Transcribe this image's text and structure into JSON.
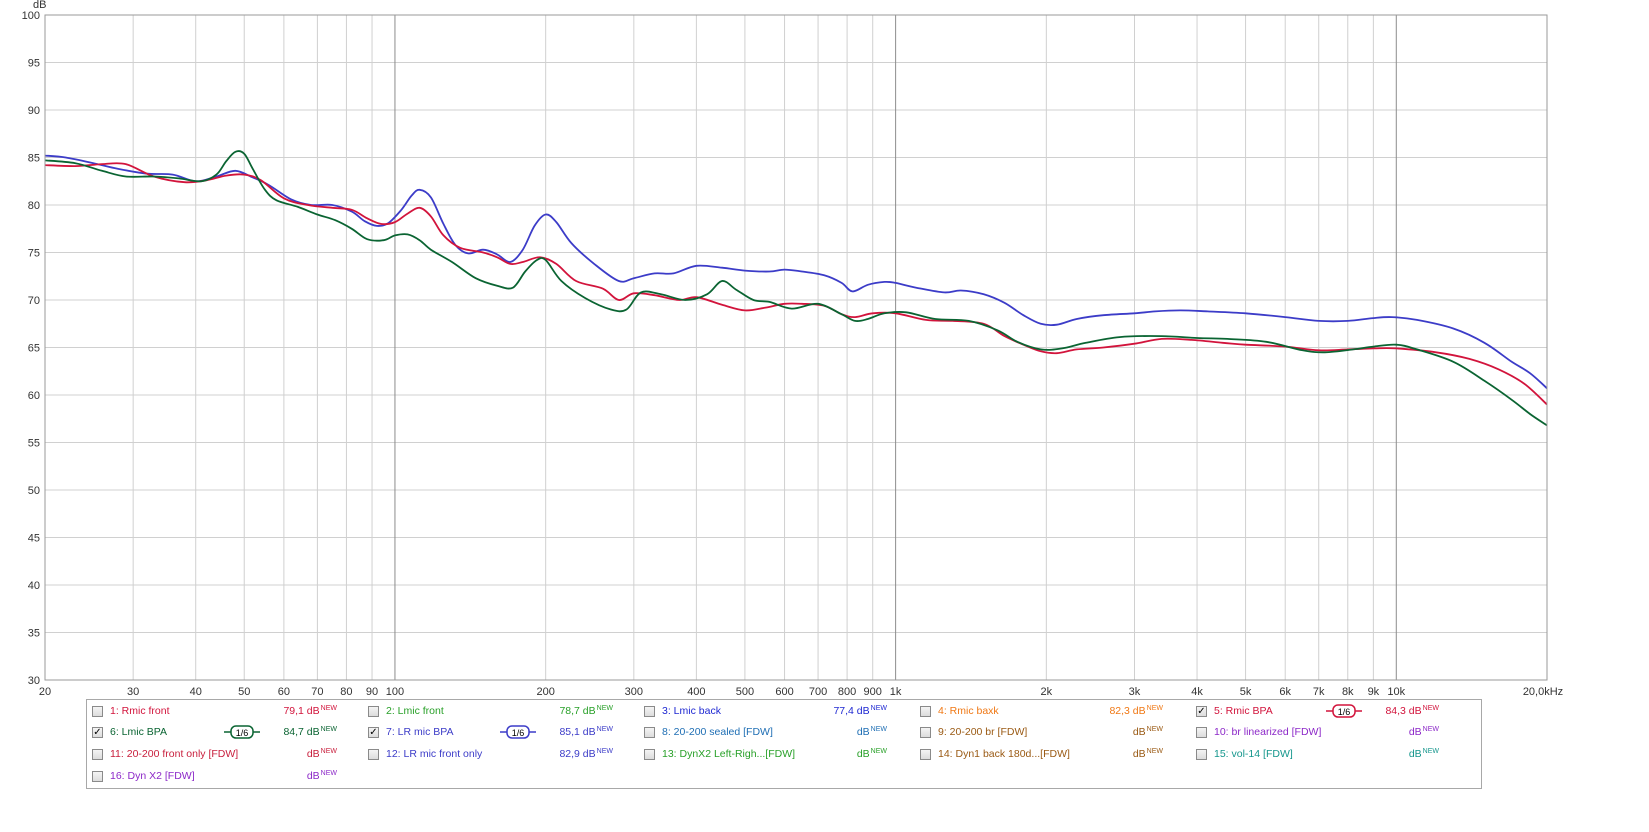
{
  "chart_data": {
    "type": "line",
    "title": "",
    "xlabel": "",
    "ylabel": "dB",
    "x_scale": "log",
    "xlim": [
      20,
      20000
    ],
    "ylim": [
      30,
      100
    ],
    "y_ticks": [
      "100",
      "95",
      "90",
      "85",
      "80",
      "75",
      "70",
      "65",
      "60",
      "55",
      "50",
      "45",
      "40",
      "35",
      "30"
    ],
    "x_ticks": [
      {
        "value": 20,
        "label": "20"
      },
      {
        "value": 30,
        "label": "30"
      },
      {
        "value": 40,
        "label": "40"
      },
      {
        "value": 50,
        "label": "50"
      },
      {
        "value": 60,
        "label": "60"
      },
      {
        "value": 70,
        "label": "70"
      },
      {
        "value": 80,
        "label": "80"
      },
      {
        "value": 90,
        "label": "90"
      },
      {
        "value": 100,
        "label": "100"
      },
      {
        "value": 200,
        "label": "200"
      },
      {
        "value": 300,
        "label": "300"
      },
      {
        "value": 400,
        "label": "400"
      },
      {
        "value": 500,
        "label": "500"
      },
      {
        "value": 600,
        "label": "600"
      },
      {
        "value": 700,
        "label": "700"
      },
      {
        "value": 800,
        "label": "800"
      },
      {
        "value": 900,
        "label": "900"
      },
      {
        "value": 1000,
        "label": "1k"
      },
      {
        "value": 2000,
        "label": "2k"
      },
      {
        "value": 3000,
        "label": "3k"
      },
      {
        "value": 4000,
        "label": "4k"
      },
      {
        "value": 5000,
        "label": "5k"
      },
      {
        "value": 6000,
        "label": "6k"
      },
      {
        "value": 7000,
        "label": "7k"
      },
      {
        "value": 8000,
        "label": "8k"
      },
      {
        "value": 9000,
        "label": "9k"
      },
      {
        "value": 10000,
        "label": "10k"
      },
      {
        "value": 20000,
        "label": "20,0kHz"
      }
    ],
    "grid": true,
    "series": [
      {
        "name": "7: LR mic BPA",
        "color": "#3c3cc8",
        "points": [
          [
            20,
            85.2
          ],
          [
            22,
            85.0
          ],
          [
            25,
            84.4
          ],
          [
            28,
            83.8
          ],
          [
            32,
            83.3
          ],
          [
            36,
            83.2
          ],
          [
            40,
            82.5
          ],
          [
            44,
            83.0
          ],
          [
            48,
            83.6
          ],
          [
            52,
            82.9
          ],
          [
            56,
            82.1
          ],
          [
            62,
            80.6
          ],
          [
            68,
            80.0
          ],
          [
            75,
            80.0
          ],
          [
            82,
            79.3
          ],
          [
            87,
            78.3
          ],
          [
            92,
            77.8
          ],
          [
            97,
            78.1
          ],
          [
            103,
            79.5
          ],
          [
            108,
            81.0
          ],
          [
            112,
            81.6
          ],
          [
            118,
            80.8
          ],
          [
            125,
            78.0
          ],
          [
            132,
            75.8
          ],
          [
            140,
            74.9
          ],
          [
            150,
            75.3
          ],
          [
            160,
            74.8
          ],
          [
            170,
            74.0
          ],
          [
            180,
            75.3
          ],
          [
            190,
            77.8
          ],
          [
            200,
            79.0
          ],
          [
            210,
            78.2
          ],
          [
            225,
            76.0
          ],
          [
            250,
            73.8
          ],
          [
            280,
            72.0
          ],
          [
            300,
            72.3
          ],
          [
            330,
            72.8
          ],
          [
            360,
            72.8
          ],
          [
            400,
            73.6
          ],
          [
            450,
            73.4
          ],
          [
            500,
            73.1
          ],
          [
            560,
            73.0
          ],
          [
            600,
            73.2
          ],
          [
            650,
            73.0
          ],
          [
            720,
            72.6
          ],
          [
            780,
            71.8
          ],
          [
            820,
            70.9
          ],
          [
            880,
            71.6
          ],
          [
            950,
            71.9
          ],
          [
            1000,
            71.8
          ],
          [
            1100,
            71.3
          ],
          [
            1250,
            70.8
          ],
          [
            1350,
            71.0
          ],
          [
            1500,
            70.6
          ],
          [
            1650,
            69.7
          ],
          [
            1800,
            68.4
          ],
          [
            1950,
            67.5
          ],
          [
            2100,
            67.4
          ],
          [
            2300,
            68.0
          ],
          [
            2600,
            68.4
          ],
          [
            3000,
            68.6
          ],
          [
            3300,
            68.8
          ],
          [
            3700,
            68.9
          ],
          [
            4200,
            68.8
          ],
          [
            5000,
            68.6
          ],
          [
            6000,
            68.2
          ],
          [
            7000,
            67.8
          ],
          [
            8000,
            67.8
          ],
          [
            9000,
            68.1
          ],
          [
            9800,
            68.2
          ],
          [
            11000,
            67.9
          ],
          [
            13000,
            67.0
          ],
          [
            15000,
            65.5
          ],
          [
            17000,
            63.5
          ],
          [
            18500,
            62.3
          ],
          [
            20000,
            60.7
          ]
        ]
      },
      {
        "name": "5: Rmic BPA",
        "color": "#d2143c",
        "points": [
          [
            20,
            84.2
          ],
          [
            23,
            84.1
          ],
          [
            26,
            84.3
          ],
          [
            29,
            84.3
          ],
          [
            33,
            83.0
          ],
          [
            38,
            82.4
          ],
          [
            42,
            82.6
          ],
          [
            46,
            83.1
          ],
          [
            50,
            83.2
          ],
          [
            54,
            82.6
          ],
          [
            60,
            80.7
          ],
          [
            67,
            80.0
          ],
          [
            75,
            79.7
          ],
          [
            82,
            79.5
          ],
          [
            88,
            78.6
          ],
          [
            94,
            78.0
          ],
          [
            100,
            78.2
          ],
          [
            106,
            79.1
          ],
          [
            112,
            79.7
          ],
          [
            118,
            78.8
          ],
          [
            125,
            76.8
          ],
          [
            135,
            75.5
          ],
          [
            150,
            75.0
          ],
          [
            160,
            74.5
          ],
          [
            170,
            73.8
          ],
          [
            180,
            74.0
          ],
          [
            195,
            74.5
          ],
          [
            210,
            73.8
          ],
          [
            230,
            72.0
          ],
          [
            260,
            71.2
          ],
          [
            280,
            70.0
          ],
          [
            300,
            70.7
          ],
          [
            330,
            70.5
          ],
          [
            370,
            70.0
          ],
          [
            400,
            70.3
          ],
          [
            450,
            69.5
          ],
          [
            500,
            68.9
          ],
          [
            550,
            69.2
          ],
          [
            600,
            69.6
          ],
          [
            650,
            69.6
          ],
          [
            720,
            69.4
          ],
          [
            780,
            68.5
          ],
          [
            830,
            68.2
          ],
          [
            900,
            68.6
          ],
          [
            1000,
            68.6
          ],
          [
            1150,
            67.9
          ],
          [
            1300,
            67.8
          ],
          [
            1500,
            67.5
          ],
          [
            1650,
            66.2
          ],
          [
            1800,
            65.3
          ],
          [
            1950,
            64.6
          ],
          [
            2100,
            64.4
          ],
          [
            2300,
            64.8
          ],
          [
            2600,
            65.0
          ],
          [
            3000,
            65.4
          ],
          [
            3400,
            65.9
          ],
          [
            3900,
            65.8
          ],
          [
            4500,
            65.5
          ],
          [
            5000,
            65.3
          ],
          [
            6000,
            65.1
          ],
          [
            7000,
            64.7
          ],
          [
            8000,
            64.8
          ],
          [
            9000,
            64.9
          ],
          [
            10000,
            64.9
          ],
          [
            12000,
            64.5
          ],
          [
            14000,
            63.8
          ],
          [
            16000,
            62.7
          ],
          [
            18000,
            61.2
          ],
          [
            20000,
            59.0
          ]
        ]
      },
      {
        "name": "6: Lmic BPA",
        "color": "#0a6432",
        "points": [
          [
            20,
            84.7
          ],
          [
            23,
            84.4
          ],
          [
            26,
            83.6
          ],
          [
            29,
            83.0
          ],
          [
            33,
            83.0
          ],
          [
            37,
            82.8
          ],
          [
            41,
            82.5
          ],
          [
            44,
            83.2
          ],
          [
            46,
            84.6
          ],
          [
            48,
            85.6
          ],
          [
            50,
            85.4
          ],
          [
            52,
            83.8
          ],
          [
            55,
            81.6
          ],
          [
            58,
            80.5
          ],
          [
            64,
            79.8
          ],
          [
            70,
            79.0
          ],
          [
            76,
            78.4
          ],
          [
            82,
            77.5
          ],
          [
            88,
            76.4
          ],
          [
            95,
            76.3
          ],
          [
            100,
            76.8
          ],
          [
            106,
            76.9
          ],
          [
            112,
            76.3
          ],
          [
            118,
            75.3
          ],
          [
            130,
            74.0
          ],
          [
            145,
            72.3
          ],
          [
            160,
            71.5
          ],
          [
            172,
            71.3
          ],
          [
            182,
            73.0
          ],
          [
            192,
            74.2
          ],
          [
            200,
            74.2
          ],
          [
            215,
            72.0
          ],
          [
            240,
            70.2
          ],
          [
            270,
            69.0
          ],
          [
            290,
            69.0
          ],
          [
            310,
            70.8
          ],
          [
            340,
            70.6
          ],
          [
            380,
            70.0
          ],
          [
            420,
            70.6
          ],
          [
            450,
            72.0
          ],
          [
            480,
            71.1
          ],
          [
            520,
            70.0
          ],
          [
            560,
            69.8
          ],
          [
            620,
            69.1
          ],
          [
            700,
            69.6
          ],
          [
            780,
            68.5
          ],
          [
            830,
            67.8
          ],
          [
            880,
            68.0
          ],
          [
            950,
            68.6
          ],
          [
            1050,
            68.7
          ],
          [
            1200,
            68.0
          ],
          [
            1400,
            67.8
          ],
          [
            1600,
            66.8
          ],
          [
            1750,
            65.6
          ],
          [
            1950,
            64.8
          ],
          [
            2150,
            64.9
          ],
          [
            2400,
            65.5
          ],
          [
            2800,
            66.1
          ],
          [
            3400,
            66.2
          ],
          [
            4000,
            66.0
          ],
          [
            4600,
            65.9
          ],
          [
            5500,
            65.6
          ],
          [
            6500,
            64.7
          ],
          [
            7200,
            64.5
          ],
          [
            8200,
            64.8
          ],
          [
            9000,
            65.1
          ],
          [
            10000,
            65.3
          ],
          [
            11000,
            64.8
          ],
          [
            13000,
            63.5
          ],
          [
            15000,
            61.5
          ],
          [
            17000,
            59.5
          ],
          [
            18500,
            58.0
          ],
          [
            20000,
            56.8
          ]
        ]
      }
    ]
  },
  "legend": {
    "rows": [
      [
        {
          "label": "1: Rmic front",
          "value": "79,1 dB",
          "checked": false,
          "color": "#d2143c",
          "smoothing": ""
        },
        {
          "label": "2: Lmic front",
          "value": "78,7 dB",
          "checked": false,
          "color": "#28a028",
          "smoothing": ""
        },
        {
          "label": "3: Lmic back",
          "value": "77,4 dB",
          "checked": false,
          "color": "#1e28d2",
          "smoothing": ""
        },
        {
          "label": "4: Rmic baxk",
          "value": "82,3 dB",
          "checked": false,
          "color": "#f07814",
          "smoothing": ""
        },
        {
          "label": "5: Rmic BPA",
          "value": "84,3 dB",
          "checked": true,
          "color": "#d2143c",
          "smoothing": "1/6"
        }
      ],
      [
        {
          "label": "6: Lmic BPA",
          "value": "84,7 dB",
          "checked": true,
          "color": "#0a6432",
          "smoothing": "1/6"
        },
        {
          "label": "7: LR mic BPA",
          "value": "85,1 dB",
          "checked": true,
          "color": "#3c3cc8",
          "smoothing": "1/6"
        },
        {
          "label": "8: 20-200 sealed [FDW]",
          "value": "dB",
          "checked": false,
          "color": "#1e6eb4",
          "smoothing": ""
        },
        {
          "label": "9: 20-200 br [FDW]",
          "value": "dB",
          "checked": false,
          "color": "#9a5a14",
          "smoothing": ""
        },
        {
          "label": "10: br linearized [FDW]",
          "value": "dB",
          "checked": false,
          "color": "#8c28c8",
          "smoothing": ""
        }
      ],
      [
        {
          "label": "11: 20-200 front only [FDW]",
          "value": "dB",
          "checked": false,
          "color": "#c81e3c",
          "smoothing": ""
        },
        {
          "label": "12: LR mic front only",
          "value": "82,9 dB",
          "checked": false,
          "color": "#3c3cc8",
          "smoothing": ""
        },
        {
          "label": "13: DynX2 Left-Righ...[FDW]",
          "value": "dB",
          "checked": false,
          "color": "#28a028",
          "smoothing": ""
        },
        {
          "label": "14: Dyn1 back 180d...[FDW]",
          "value": "dB",
          "checked": false,
          "color": "#9a5a14",
          "smoothing": ""
        },
        {
          "label": "15: vol-14 [FDW]",
          "value": "dB",
          "checked": false,
          "color": "#14968c",
          "smoothing": ""
        }
      ],
      [
        {
          "label": "16: Dyn X2 [FDW]",
          "value": "dB",
          "checked": false,
          "color": "#8c28c8",
          "smoothing": ""
        }
      ]
    ],
    "new_tag": "NEW"
  }
}
